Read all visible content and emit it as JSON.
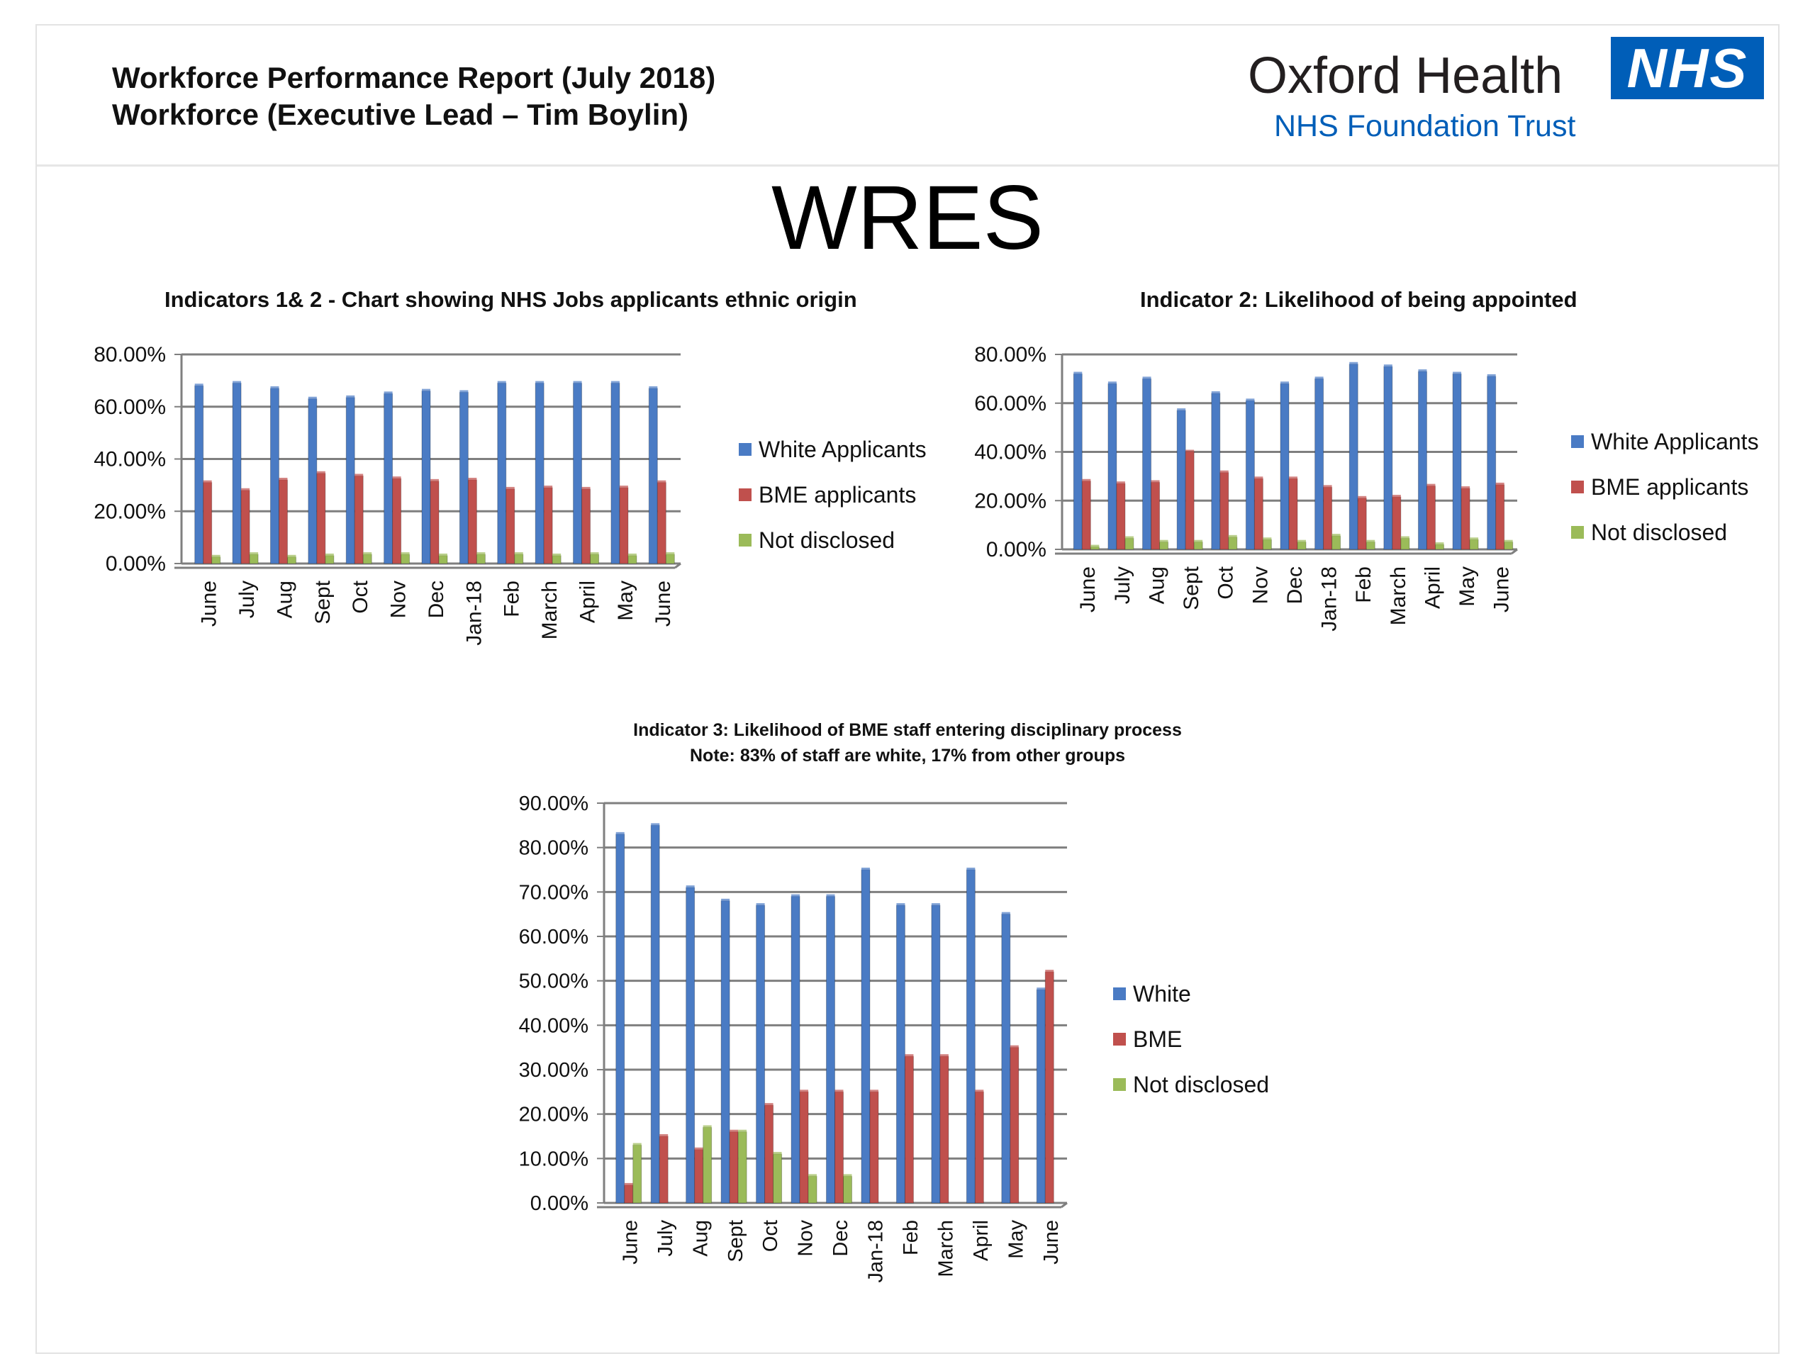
{
  "header": {
    "title_line1": "Workforce Performance Report (July 2018)",
    "title_line2": "Workforce (Executive Lead – Tim Boylin)",
    "logo_name": "Oxford Health",
    "logo_sub": "NHS Foundation Trust",
    "logo_badge": "NHS"
  },
  "page_title": "WRES",
  "colors": {
    "series1": "#4a7bc4",
    "series2": "#c0504d",
    "series3": "#9bbb59",
    "grid": "#7f7f7f"
  },
  "chart_data": [
    {
      "type": "bar",
      "title": "Indicators 1& 2 - Chart showing NHS Jobs applicants ethnic origin",
      "categories": [
        "June",
        "July",
        "Aug",
        "Sept",
        "Oct",
        "Nov",
        "Dec",
        "Jan-18",
        "Feb",
        "March",
        "April",
        "May",
        "June"
      ],
      "ylim": [
        0,
        80
      ],
      "yticks": [
        "0.00%",
        "20.00%",
        "40.00%",
        "60.00%",
        "80.00%"
      ],
      "series": [
        {
          "name": "White Applicants",
          "values": [
            68,
            69,
            67,
            63,
            63.5,
            65,
            66,
            65.5,
            69,
            69,
            69,
            69,
            67
          ]
        },
        {
          "name": "BME applicants",
          "values": [
            31,
            28,
            32,
            34.5,
            33.5,
            32.5,
            31.5,
            32,
            28.5,
            29,
            28.5,
            29,
            31
          ]
        },
        {
          "name": "Not disclosed",
          "values": [
            2.5,
            3.5,
            2.5,
            3,
            3.5,
            3.5,
            3,
            3.5,
            3.5,
            3,
            3.5,
            3,
            3.5
          ]
        }
      ]
    },
    {
      "type": "bar",
      "title": "Indicator 2: Likelihood of being appointed",
      "categories": [
        "June",
        "July",
        "Aug",
        "Sept",
        "Oct",
        "Nov",
        "Dec",
        "Jan-18",
        "Feb",
        "March",
        "April",
        "May",
        "June"
      ],
      "ylim": [
        0,
        80
      ],
      "yticks": [
        "0.00%",
        "20.00%",
        "40.00%",
        "60.00%",
        "80.00%"
      ],
      "series": [
        {
          "name": "White Applicants",
          "values": [
            72,
            68,
            70,
            57,
            64,
            61,
            68,
            70,
            76,
            75,
            73,
            72,
            71
          ]
        },
        {
          "name": "BME applicants",
          "values": [
            28,
            27,
            27.5,
            40,
            31.5,
            29,
            29,
            25.5,
            21,
            21.5,
            26,
            25,
            26.5
          ]
        },
        {
          "name": "Not disclosed",
          "values": [
            1,
            4.5,
            3,
            3,
            5,
            4,
            3,
            5.5,
            3,
            4.5,
            2,
            4,
            3
          ]
        }
      ]
    },
    {
      "type": "bar",
      "title": "Indicator 3: Likelihood of BME staff entering disciplinary process",
      "note": "Note: 83% of staff are white, 17% from other groups",
      "categories": [
        "June",
        "July",
        "Aug",
        "Sept",
        "Oct",
        "Nov",
        "Dec",
        "Jan-18",
        "Feb",
        "March",
        "April",
        "May",
        "June"
      ],
      "ylim": [
        0,
        90
      ],
      "yticks": [
        "0.00%",
        "10.00%",
        "20.00%",
        "30.00%",
        "40.00%",
        "50.00%",
        "60.00%",
        "70.00%",
        "80.00%",
        "90.00%"
      ],
      "series": [
        {
          "name": "White",
          "values": [
            83,
            85,
            71,
            68,
            67,
            69,
            69,
            75,
            67,
            67,
            75,
            65,
            48
          ]
        },
        {
          "name": "BME",
          "values": [
            4,
            15,
            12,
            16,
            22,
            25,
            25,
            25,
            33,
            33,
            25,
            35,
            52
          ]
        },
        {
          "name": "Not disclosed",
          "values": [
            13,
            0,
            17,
            16,
            11,
            6,
            6,
            0,
            0,
            0,
            0,
            0,
            0
          ]
        }
      ]
    }
  ]
}
